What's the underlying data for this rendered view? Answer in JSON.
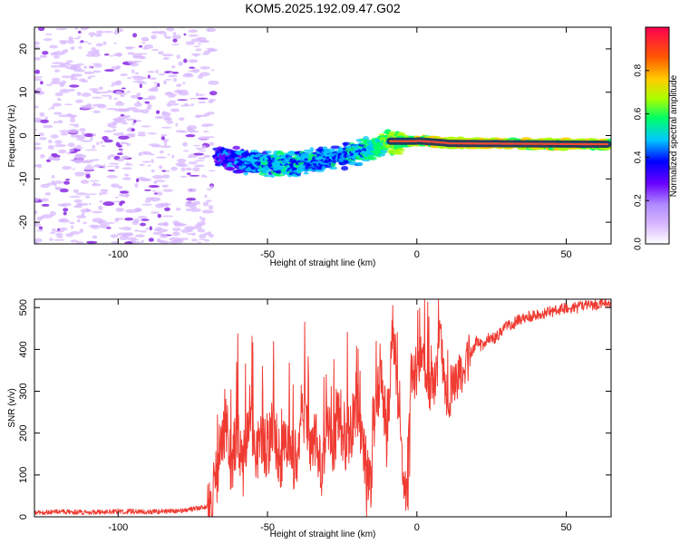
{
  "figure": {
    "title": "KOM5.2025.192.09.47.G02"
  },
  "colors": {
    "axis": "#000000",
    "snr_line": "#ef3b32",
    "noise_low": "#d8b8ff",
    "noise_high": "#8a2be2"
  },
  "chart_data": [
    {
      "type": "heatmap",
      "title": "KOM5.2025.192.09.47.G02",
      "xlabel": "Height of straight line (km)",
      "ylabel": "Frequency (Hz)",
      "xlim": [
        -128,
        65
      ],
      "ylim": [
        -25,
        25
      ],
      "xticks": [
        -100,
        -50,
        0,
        50
      ],
      "yticks": [
        -20,
        -10,
        0,
        10,
        20
      ],
      "colorbar": {
        "label": "Normalized spectral amplitude",
        "range": [
          0,
          1
        ],
        "ticks": [
          "0.0",
          "0.2",
          "0.4",
          "0.6",
          "0.8"
        ],
        "colors": [
          "#d8b8ff",
          "#b08cff",
          "#6a00ff",
          "#0000ff",
          "#00c8ff",
          "#00ff66",
          "#aaff00",
          "#ffcc00",
          "#ff5a00",
          "#ff0050"
        ]
      },
      "features": {
        "noise_region": {
          "x": [
            -128,
            -68
          ],
          "amplitude": [
            0.0,
            0.2
          ]
        },
        "signal_track": [
          {
            "x": -67,
            "frequency": -4.8,
            "amplitude": 0.35
          },
          {
            "x": -55,
            "frequency": -6.2,
            "amplitude": 0.45
          },
          {
            "x": -45,
            "frequency": -6.8,
            "amplitude": 0.52
          },
          {
            "x": -35,
            "frequency": -6.0,
            "amplitude": 0.48
          },
          {
            "x": -25,
            "frequency": -4.8,
            "amplitude": 0.45
          },
          {
            "x": -15,
            "frequency": -3.0,
            "amplitude": 0.56
          },
          {
            "x": -8,
            "frequency": -1.3,
            "amplitude": 0.66
          },
          {
            "x": 0,
            "frequency": -1.2,
            "amplitude": 0.72
          },
          {
            "x": 10,
            "frequency": -1.7,
            "amplitude": 0.8
          },
          {
            "x": 25,
            "frequency": -1.8,
            "amplitude": 0.78
          },
          {
            "x": 40,
            "frequency": -2.0,
            "amplitude": 0.76
          },
          {
            "x": 55,
            "frequency": -2.0,
            "amplitude": 0.74
          },
          {
            "x": 65,
            "frequency": -2.0,
            "amplitude": 0.72
          }
        ]
      }
    },
    {
      "type": "line",
      "xlabel": "Height of straight line (km)",
      "ylabel": "SNR (v/v)",
      "xlim": [
        -128,
        65
      ],
      "ylim": [
        0,
        520
      ],
      "xticks": [
        -100,
        -50,
        0,
        50
      ],
      "yticks": [
        0,
        100,
        200,
        300,
        400,
        500
      ],
      "x": [
        -128,
        -120,
        -110,
        -100,
        -90,
        -80,
        -75,
        -70,
        -68,
        -66,
        -64,
        -62,
        -60,
        -58,
        -56,
        -54,
        -52,
        -50,
        -48,
        -46,
        -44,
        -42,
        -40,
        -38,
        -36,
        -34,
        -32,
        -30,
        -28,
        -26,
        -24,
        -22,
        -20,
        -18,
        -16,
        -14,
        -12,
        -10,
        -8,
        -6,
        -4,
        -2,
        0,
        2,
        4,
        6,
        8,
        10,
        12,
        14,
        16,
        18,
        20,
        22,
        24,
        26,
        28,
        30,
        32,
        34,
        36,
        38,
        40,
        42,
        44,
        46,
        48,
        50,
        52,
        54,
        56,
        58,
        60,
        62,
        65
      ],
      "values": [
        10,
        12,
        11,
        13,
        12,
        14,
        18,
        25,
        55,
        150,
        240,
        120,
        210,
        95,
        275,
        140,
        190,
        165,
        230,
        130,
        205,
        160,
        120,
        240,
        170,
        185,
        110,
        215,
        160,
        250,
        180,
        210,
        280,
        150,
        120,
        260,
        360,
        180,
        460,
        220,
        70,
        330,
        350,
        390,
        305,
        330,
        430,
        270,
        320,
        345,
        360,
        390,
        420,
        405,
        430,
        425,
        440,
        455,
        460,
        470,
        475,
        480,
        485,
        486,
        490,
        492,
        495,
        497,
        500,
        500,
        505,
        506,
        508,
        510,
        512
      ]
    }
  ]
}
